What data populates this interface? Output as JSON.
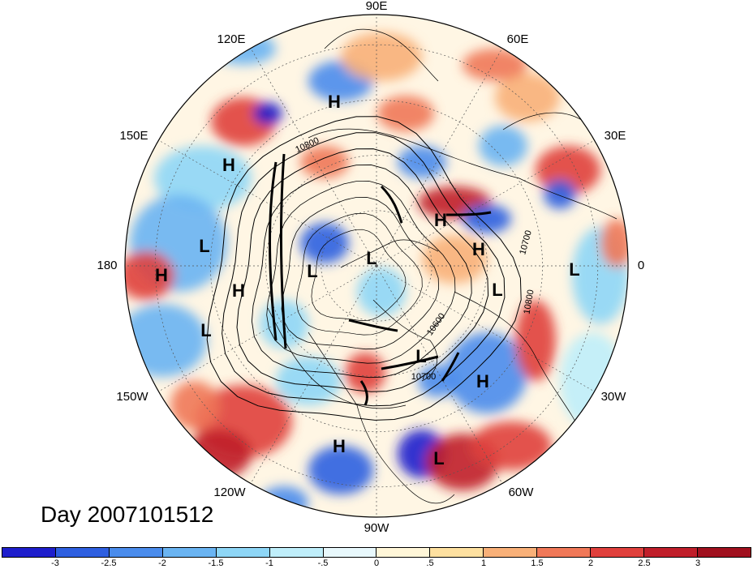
{
  "map": {
    "projection": "north polar stereographic",
    "longitude_labels": [
      "90E",
      "60E",
      "30E",
      "0",
      "30W",
      "60W",
      "90W",
      "120W",
      "150W",
      "180",
      "150E",
      "120E"
    ],
    "pressure_markers": [
      {
        "label": "H",
        "region": "northern Siberia"
      },
      {
        "label": "H",
        "region": "northeast Asia"
      },
      {
        "label": "L",
        "region": "north Pacific west"
      },
      {
        "label": "H",
        "region": "dateline"
      },
      {
        "label": "H",
        "region": "Bering Sea"
      },
      {
        "label": "L",
        "region": "east Siberia"
      },
      {
        "label": "L",
        "region": "Arctic"
      },
      {
        "label": "L",
        "region": "Russia"
      },
      {
        "label": "H",
        "region": "Europe"
      },
      {
        "label": "H",
        "region": "North Africa"
      },
      {
        "label": "L",
        "region": "north Atlantic"
      },
      {
        "label": "L",
        "region": "Gulf of Alaska"
      },
      {
        "label": "L",
        "region": "Labrador"
      },
      {
        "label": "H",
        "region": "central Atlantic"
      },
      {
        "label": "H",
        "region": "eastern Pacific"
      },
      {
        "label": "L",
        "region": "Caribbean"
      }
    ],
    "contour_labels": [
      "10800",
      "10700",
      "10600",
      "10700",
      "10800"
    ],
    "day_label": "Day 2007101512"
  },
  "colorbar": {
    "labels": [
      "-3",
      "-2.5",
      "-2",
      "-1.5",
      "-1",
      "-.5",
      "0",
      ".5",
      "1",
      "1.5",
      "2",
      "2.5",
      "3"
    ],
    "colors": [
      "#1e1ecc",
      "#2e5fe0",
      "#4a8cec",
      "#6ab4f2",
      "#8ed6f6",
      "#bfeefa",
      "#e8f8fc",
      "#fff6d8",
      "#fde0a0",
      "#f8b078",
      "#f07858",
      "#e0403c",
      "#c01e2a",
      "#a0101e"
    ]
  }
}
